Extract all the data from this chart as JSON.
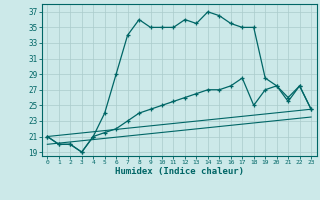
{
  "xlabel": "Humidex (Indice chaleur)",
  "background_color": "#cce9e9",
  "grid_color": "#aacccc",
  "line_color": "#006666",
  "x_range": [
    -0.5,
    23.5
  ],
  "y_range": [
    18.5,
    38.0
  ],
  "yticks": [
    19,
    21,
    23,
    25,
    27,
    29,
    31,
    33,
    35,
    37
  ],
  "xticks": [
    0,
    1,
    2,
    3,
    4,
    5,
    6,
    7,
    8,
    9,
    10,
    11,
    12,
    13,
    14,
    15,
    16,
    17,
    18,
    19,
    20,
    21,
    22,
    23
  ],
  "line1_x": [
    0,
    1,
    2,
    3,
    4,
    5,
    6,
    7,
    8,
    9,
    10,
    11,
    12,
    13,
    14,
    15,
    16,
    17,
    18,
    19,
    20,
    21,
    22,
    23
  ],
  "line1_y": [
    21,
    20,
    20,
    19,
    21,
    24,
    29,
    34,
    36,
    35,
    35,
    35,
    36,
    35.5,
    37,
    36.5,
    35.5,
    35,
    35,
    28.5,
    27.5,
    25.5,
    27.5,
    24.5
  ],
  "line2_x": [
    0,
    1,
    2,
    3,
    4,
    5,
    6,
    7,
    8,
    9,
    10,
    11,
    12,
    13,
    14,
    15,
    16,
    17,
    18,
    19,
    20,
    21,
    22,
    23
  ],
  "line2_y": [
    21,
    20,
    20,
    19,
    21,
    21.5,
    22,
    23,
    24,
    24.5,
    25,
    25.5,
    26,
    26.5,
    27,
    27,
    27.5,
    28.5,
    25,
    27,
    27.5,
    26,
    27.5,
    24.5
  ],
  "line4_x": [
    0,
    23
  ],
  "line4_y": [
    21,
    24.5
  ],
  "line5_x": [
    0,
    23
  ],
  "line5_y": [
    20,
    23.5
  ]
}
